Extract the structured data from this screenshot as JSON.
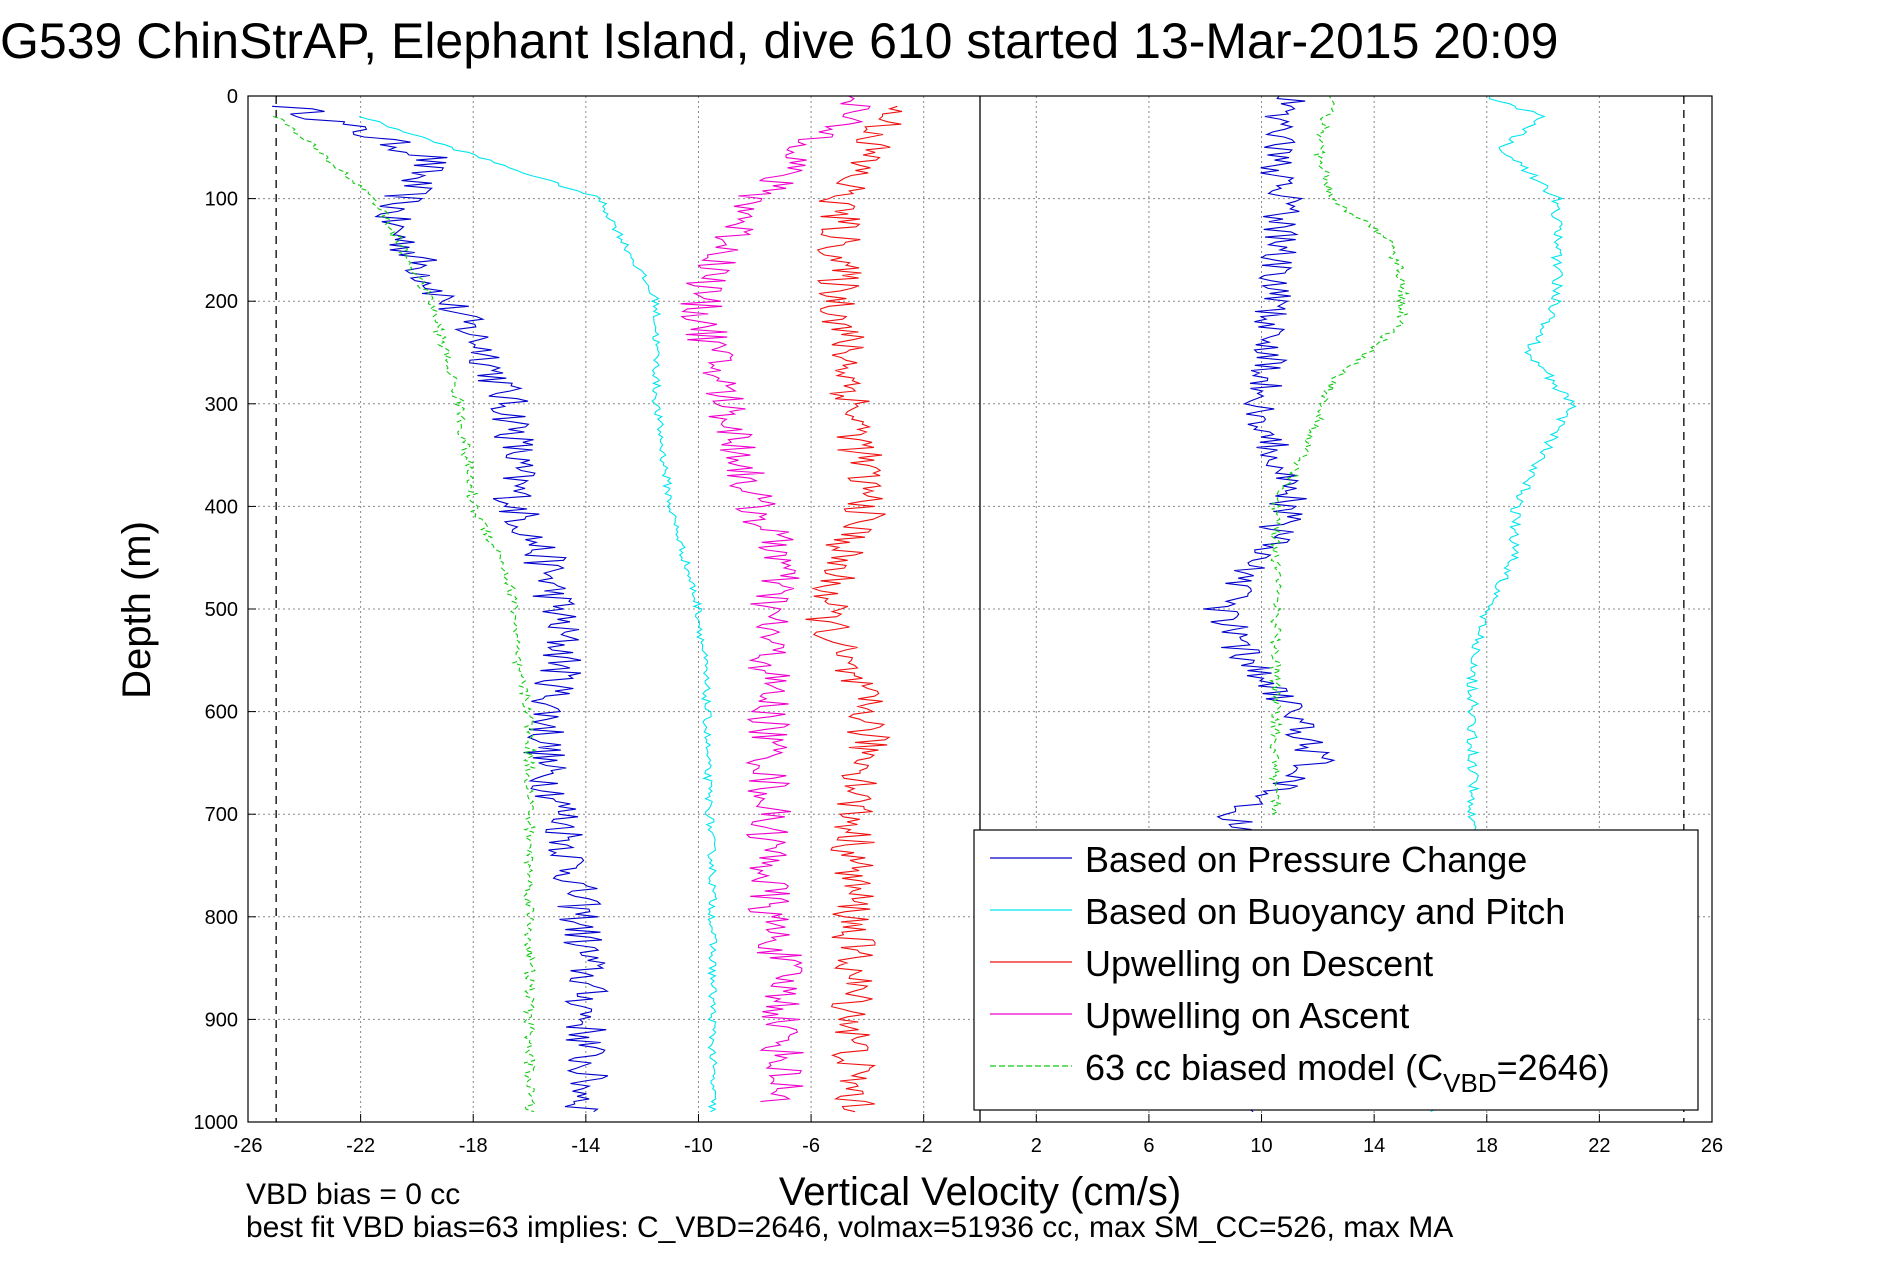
{
  "colors": {
    "pressure": "#0000cc",
    "buoyancy": "#00e5ee",
    "descent": "#ee1111",
    "ascent": "#ee00cc",
    "model": "#11cc11",
    "grid": "#888888",
    "axis": "#000000"
  },
  "footer": {
    "line1": "VBD bias = 0 cc",
    "line2": "best fit VBD bias=63 implies: C_VBD=2646, volmax=51936 cc, max SM_CC=526, max MA"
  },
  "chart_data": {
    "type": "line",
    "title": "G539 ChinStrAP, Elephant Island, dive 610 started 13-Mar-2015 20:09",
    "xlabel": "Vertical Velocity (cm/s)",
    "ylabel": "Depth (m)",
    "xlim": [
      -26,
      26
    ],
    "ylim": [
      0,
      1000
    ],
    "y_reversed": true,
    "grid": true,
    "legend_position": "bottom-right",
    "x_ticks": [
      "-26",
      "-22",
      "-18",
      "-14",
      "-10",
      "-6",
      "-2",
      "2",
      "6",
      "10",
      "14",
      "18",
      "22",
      "26"
    ],
    "y_ticks": [
      "0",
      "100",
      "200",
      "300",
      "400",
      "500",
      "600",
      "700",
      "800",
      "900",
      "1000"
    ],
    "reference_lines_x": [
      -25,
      0,
      25
    ],
    "legend": [
      {
        "label": "Based on Pressure Change",
        "style": "solid"
      },
      {
        "label": "Based on Buoyancy and Pitch",
        "style": "solid"
      },
      {
        "label": "Upwelling on Descent",
        "style": "solid"
      },
      {
        "label": "Upwelling on Ascent",
        "style": "solid"
      },
      {
        "label_main": "63 cc biased model (C",
        "label_sub": "VBD",
        "label_tail": "=2646)",
        "style": "dashed"
      }
    ],
    "series": [
      {
        "key": "pressure",
        "x": [
          -24.5,
          -19.5,
          -21.0,
          -19.5,
          -17.5,
          -16.5,
          -16.5,
          -15.5,
          -15.0,
          -14.8,
          -15.3,
          -15.5,
          -14.8,
          -14.5,
          -14.2,
          -14.0,
          -14.0,
          -14.0,
          -14.0,
          -14.0,
          -14.0,
          -14.0,
          -14.0
        ],
        "y": [
          10,
          60,
          120,
          180,
          250,
          320,
          400,
          450,
          500,
          550,
          600,
          650,
          700,
          750,
          800,
          850,
          900,
          950,
          990,
          990,
          990,
          990,
          990
        ]
      },
      {
        "key": "pressure_up",
        "x": [
          10.0,
          9.0,
          12.0,
          11.0,
          9.5,
          8.5,
          10.0,
          11.0,
          10.0,
          10.5,
          10.8,
          10.5,
          10.8,
          11.0
        ],
        "y": [
          990,
          700,
          650,
          600,
          550,
          500,
          450,
          400,
          300,
          200,
          100,
          50,
          20,
          0
        ]
      },
      {
        "key": "buoyancy",
        "x": [
          -22.0,
          -13.5,
          -11.5,
          -11.5,
          -11.0,
          -10.5,
          -10.0,
          -9.8,
          -9.7,
          -9.7,
          -9.6,
          -9.5,
          -9.5,
          -9.5,
          -9.5,
          -9.5
        ],
        "y": [
          20,
          100,
          200,
          300,
          400,
          450,
          500,
          550,
          600,
          650,
          700,
          750,
          800,
          850,
          900,
          990
        ]
      },
      {
        "key": "buoyancy_up",
        "x": [
          16.0,
          17.5,
          17.5,
          17.5,
          17.5,
          18.0,
          19.0,
          19.0,
          20.0,
          21.0,
          19.5,
          20.5,
          20.5,
          20.5,
          18.5,
          20.0,
          18.0
        ],
        "y": [
          990,
          720,
          650,
          600,
          550,
          500,
          450,
          400,
          350,
          300,
          250,
          200,
          150,
          100,
          50,
          20,
          0
        ]
      },
      {
        "key": "descent",
        "x": [
          -3.0,
          -5.0,
          -5.0,
          -4.5,
          -4.0,
          -5.0,
          -5.5,
          -5.0,
          -4.0,
          -4.0,
          -4.5,
          -4.5,
          -4.5,
          -4.5,
          -4.5
        ],
        "y": [
          10,
          100,
          200,
          300,
          400,
          450,
          500,
          550,
          600,
          650,
          700,
          800,
          850,
          900,
          990
        ]
      },
      {
        "key": "ascent",
        "x": [
          -4.0,
          -8.0,
          -10.0,
          -9.0,
          -8.0,
          -7.0,
          -7.5,
          -7.5,
          -7.5,
          -7.5,
          -7.5,
          -7.5,
          -7.0,
          -7.0,
          -7.0
        ],
        "y": [
          0,
          100,
          200,
          300,
          400,
          450,
          500,
          550,
          600,
          650,
          700,
          800,
          850,
          900,
          980
        ]
      },
      {
        "key": "model_down",
        "x": [
          -25.0,
          -21.5,
          -19.5,
          -18.5,
          -18.0,
          -17.0,
          -16.5,
          -16.5,
          -16.0,
          -16.0,
          -16.0,
          -16.0,
          -16.0,
          -16.0,
          -16.0
        ],
        "y": [
          20,
          100,
          200,
          300,
          400,
          450,
          500,
          550,
          600,
          650,
          700,
          800,
          850,
          900,
          990
        ]
      },
      {
        "key": "model_up",
        "x": [
          10.5,
          10.5,
          10.5,
          10.5,
          11.5,
          12.5,
          15.0,
          15.0,
          14.5,
          12.5,
          12.0,
          12.5
        ],
        "y": [
          700,
          600,
          500,
          400,
          350,
          280,
          220,
          180,
          140,
          100,
          50,
          0
        ]
      }
    ]
  }
}
